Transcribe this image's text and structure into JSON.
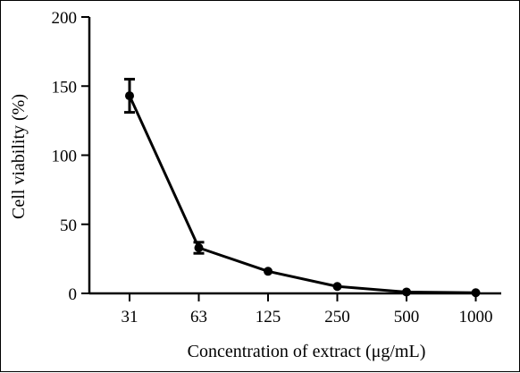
{
  "chart_data": {
    "type": "line",
    "xlabel": "Concentration of extract (μg/mL)",
    "ylabel": "Cell viability (%)",
    "categories": [
      "31",
      "63",
      "125",
      "250",
      "500",
      "1000"
    ],
    "ylim": [
      0,
      200
    ],
    "yticks": [
      0,
      50,
      100,
      150,
      200
    ],
    "grid": false,
    "series": [
      {
        "values": [
          143,
          33,
          16,
          5,
          1,
          0.5
        ],
        "errors": [
          12,
          4,
          0,
          0,
          0,
          0
        ]
      }
    ],
    "colors": {
      "line": "#000000",
      "marker": "#000000"
    }
  }
}
